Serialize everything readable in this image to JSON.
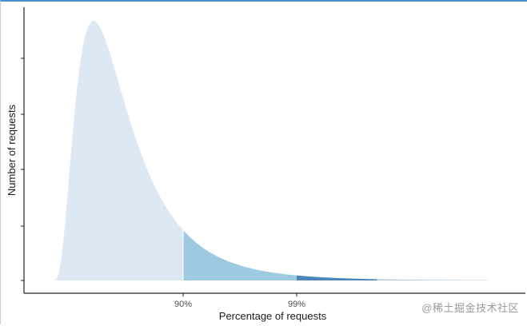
{
  "chart_data": {
    "type": "area",
    "title": "",
    "xlabel": "Percentage of requests",
    "ylabel": "Number of requests",
    "x_ticks": [
      {
        "label": "90%",
        "value": 90
      },
      {
        "label": "99%",
        "value": 99
      }
    ],
    "y_ticks": 6,
    "y_tick_labels_shown": false,
    "grid": false,
    "legend": "none",
    "distribution": "right-skewed density",
    "shading_regions": [
      {
        "name": "below 90th percentile",
        "color": "#dce9f5"
      },
      {
        "name": "90th to 99th percentile",
        "color": "#9ecae1"
      },
      {
        "name": "99th to 99.9th percentile",
        "color": "#4a86b8"
      },
      {
        "name": "above 99.9th percentile",
        "color": "#a9c9e2"
      }
    ]
  },
  "watermark": "@稀土掘金技术社区"
}
